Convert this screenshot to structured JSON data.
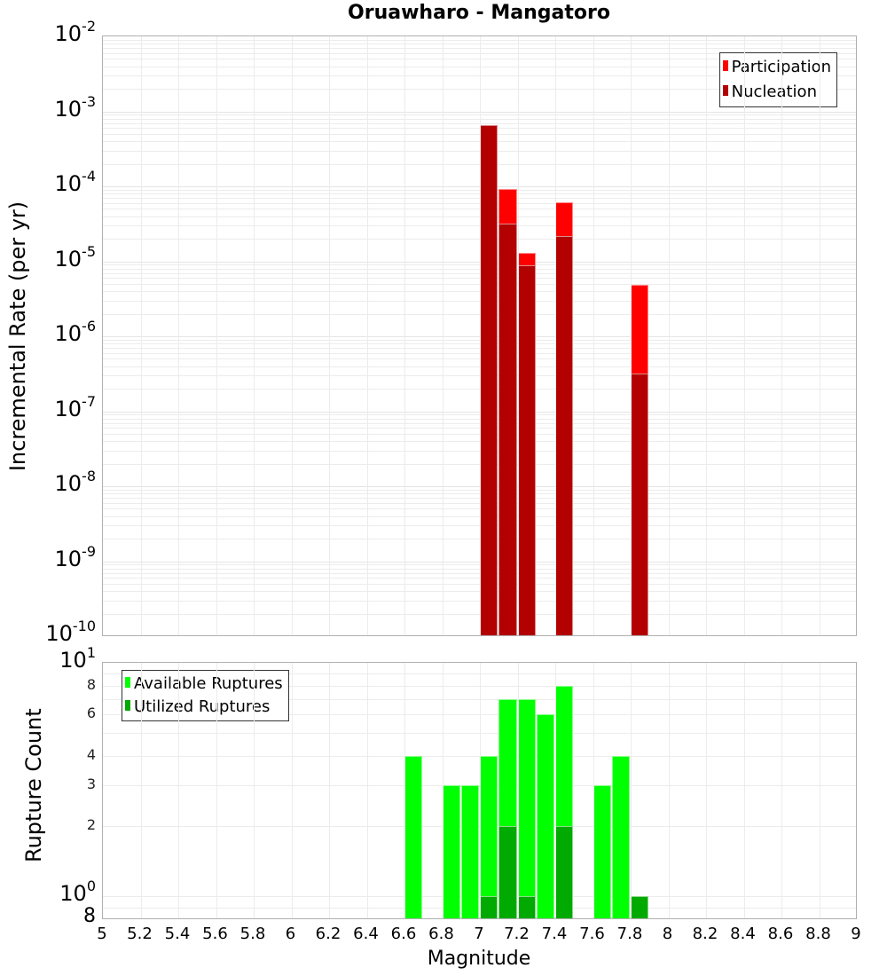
{
  "title": "Oruawharo - Mangatoro",
  "top_chart": {
    "ylabel": "Incremental Rate (per yr)",
    "yticks": [
      {
        "base": "10",
        "exp": "-2"
      },
      {
        "base": "10",
        "exp": "-3"
      },
      {
        "base": "10",
        "exp": "-4"
      },
      {
        "base": "10",
        "exp": "-5"
      },
      {
        "base": "10",
        "exp": "-6"
      },
      {
        "base": "10",
        "exp": "-7"
      },
      {
        "base": "10",
        "exp": "-8"
      },
      {
        "base": "10",
        "exp": "-9"
      },
      {
        "base": "10",
        "exp": "-10"
      }
    ],
    "legend": [
      {
        "label": "Participation",
        "color": "#ff0000"
      },
      {
        "label": "Nucleation",
        "color": "#b30000"
      }
    ]
  },
  "bottom_chart": {
    "ylabel": "Rupture Count",
    "yticks_major": [
      {
        "base": "10",
        "exp": "1"
      },
      {
        "base": "10",
        "exp": "0"
      }
    ],
    "yticks_minor": [
      "8",
      "6",
      "4",
      "3",
      "2",
      "8"
    ],
    "legend": [
      {
        "label": "Available Ruptures",
        "color": "#00ff00"
      },
      {
        "label": "Utilized Ruptures",
        "color": "#00aa00"
      }
    ]
  },
  "xaxis": {
    "label": "Magnitude",
    "ticks": [
      "5",
      "5.2",
      "5.4",
      "5.6",
      "5.8",
      "6",
      "6.2",
      "6.4",
      "6.6",
      "6.8",
      "7",
      "7.2",
      "7.4",
      "7.6",
      "7.8",
      "8",
      "8.2",
      "8.4",
      "8.6",
      "8.8",
      "9"
    ]
  },
  "chart_data": [
    {
      "type": "bar",
      "title": "Oruawharo - Mangatoro",
      "xlabel": "Magnitude",
      "ylabel": "Incremental Rate (per yr)",
      "yscale": "log",
      "xlim": [
        5,
        9
      ],
      "ylim": [
        1e-10,
        0.01
      ],
      "grid": true,
      "legend_position": "top-right",
      "x": [
        7.05,
        7.15,
        7.25,
        7.45,
        7.85
      ],
      "series": [
        {
          "name": "Participation",
          "color": "#ff0000",
          "values": [
            0.00066,
            9.1e-05,
            1.3e-05,
            6.2e-05,
            4.9e-06
          ]
        },
        {
          "name": "Nucleation",
          "color": "#b30000",
          "values": [
            0.00066,
            3.2e-05,
            8.8e-06,
            2.2e-05,
            3.2e-07
          ]
        }
      ]
    },
    {
      "type": "bar",
      "title": "",
      "xlabel": "Magnitude",
      "ylabel": "Rupture Count",
      "yscale": "log",
      "xlim": [
        5,
        9
      ],
      "ylim": [
        0.8,
        10
      ],
      "grid": true,
      "legend_position": "top-left",
      "x": [
        6.65,
        6.85,
        6.95,
        7.05,
        7.15,
        7.25,
        7.35,
        7.45,
        7.65,
        7.75,
        7.85
      ],
      "series": [
        {
          "name": "Available Ruptures",
          "color": "#00ff00",
          "values": [
            4,
            3,
            3,
            4,
            7,
            7,
            6,
            8,
            3,
            4,
            1
          ]
        },
        {
          "name": "Utilized Ruptures",
          "color": "#00aa00",
          "values": [
            0,
            0,
            0,
            1,
            2,
            1,
            0,
            2,
            0,
            0,
            1
          ]
        }
      ]
    }
  ]
}
